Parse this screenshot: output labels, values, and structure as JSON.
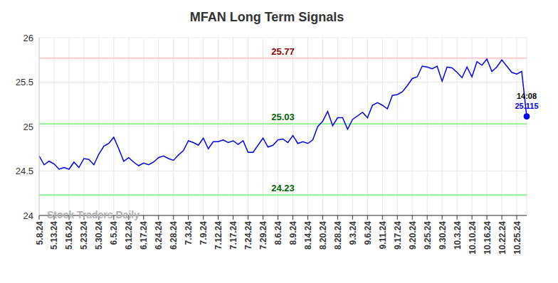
{
  "chart_data": {
    "type": "line",
    "title": "MFAN Long Term Signals",
    "watermark": "Stock Traders Daily",
    "categories": [
      "5.8.24",
      null,
      null,
      "5.13.24",
      null,
      null,
      "5.16.24",
      null,
      null,
      "5.23.24",
      null,
      null,
      "5.30.24",
      null,
      null,
      "6.5.24",
      null,
      null,
      "6.12.24",
      null,
      null,
      "6.17.24",
      null,
      null,
      "6.24.24",
      null,
      null,
      "6.28.24",
      null,
      null,
      "7.3.24",
      null,
      null,
      "7.9.24",
      null,
      null,
      "7.12.24",
      null,
      null,
      "7.17.24",
      null,
      null,
      "7.24.24",
      null,
      null,
      "7.29.24",
      null,
      null,
      "8.6.24",
      null,
      null,
      "8.9.24",
      null,
      null,
      "8.14.24",
      null,
      null,
      "8.20.24",
      null,
      null,
      "8.28.24",
      null,
      null,
      "9.3.24",
      null,
      null,
      "9.6.24",
      null,
      null,
      "9.11.24",
      null,
      null,
      "9.17.24",
      null,
      null,
      "9.20.24",
      null,
      null,
      "9.25.24",
      null,
      null,
      "9.30.24",
      null,
      null,
      "10.3.24",
      null,
      null,
      "10.10.24",
      null,
      null,
      "10.16.24",
      null,
      null,
      "10.22.24",
      null,
      null,
      "10.25.24",
      null,
      null
    ],
    "values": [
      24.67,
      24.57,
      24.61,
      24.58,
      24.52,
      24.54,
      24.52,
      24.6,
      24.54,
      24.64,
      24.63,
      24.57,
      24.69,
      24.78,
      24.81,
      24.88,
      24.75,
      24.61,
      24.65,
      24.6,
      24.56,
      24.59,
      24.57,
      24.6,
      24.65,
      24.67,
      24.64,
      24.62,
      24.68,
      24.73,
      24.84,
      24.82,
      24.79,
      24.87,
      24.75,
      24.83,
      24.83,
      24.85,
      24.82,
      24.84,
      24.8,
      24.84,
      24.71,
      24.71,
      24.79,
      24.87,
      24.77,
      24.79,
      24.85,
      24.86,
      24.82,
      24.9,
      24.81,
      24.83,
      24.81,
      24.85,
      25.0,
      25.06,
      25.17,
      25.01,
      25.1,
      25.1,
      24.97,
      25.08,
      25.12,
      25.16,
      25.1,
      25.24,
      25.27,
      25.24,
      25.2,
      25.35,
      25.36,
      25.39,
      25.46,
      25.54,
      25.56,
      25.68,
      25.67,
      25.65,
      25.68,
      25.51,
      25.67,
      25.66,
      25.61,
      25.55,
      25.67,
      25.56,
      25.73,
      25.69,
      25.76,
      25.62,
      25.67,
      25.75,
      25.68,
      25.61,
      25.59,
      25.62,
      25.115
    ],
    "color": "#0000ee",
    "reference_lines": [
      {
        "value": 25.77,
        "color": "#8b0000"
      },
      {
        "value": 25.03,
        "color": "#006400"
      },
      {
        "value": 24.23,
        "color": "#006400"
      }
    ],
    "last_point": {
      "time": "14:08",
      "value": 25.115
    },
    "ylim": [
      24,
      26
    ],
    "yticks": [
      24,
      24.5,
      25,
      25.5,
      26
    ],
    "grid": true
  }
}
